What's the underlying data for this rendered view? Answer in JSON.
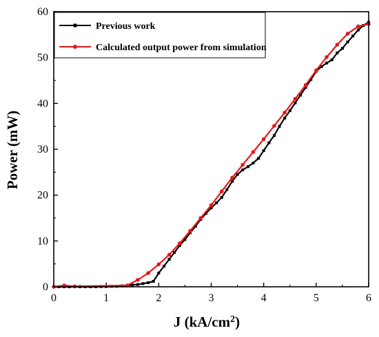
{
  "chart_data": {
    "type": "line",
    "xlabel": "J (kA/cm",
    "xlabel_sup": "2",
    "xlabel_suffix": ")",
    "ylabel": "Power (mW)",
    "xlim": [
      0,
      6
    ],
    "ylim": [
      0,
      60
    ],
    "xticks": [
      0,
      1,
      2,
      3,
      4,
      5,
      6
    ],
    "yticks": [
      0,
      10,
      20,
      30,
      40,
      50,
      60
    ],
    "grid": false,
    "legend_position": "top-left",
    "series": [
      {
        "name": "Previous work",
        "color": "#000000",
        "marker": "square",
        "x": [
          0.0,
          0.1,
          0.2,
          0.3,
          0.4,
          0.5,
          0.6,
          0.7,
          0.8,
          0.9,
          1.0,
          1.1,
          1.2,
          1.3,
          1.4,
          1.5,
          1.6,
          1.7,
          1.8,
          1.9,
          2.0,
          2.1,
          2.2,
          2.3,
          2.4,
          2.5,
          2.6,
          2.7,
          2.8,
          2.9,
          3.0,
          3.1,
          3.2,
          3.3,
          3.4,
          3.5,
          3.6,
          3.7,
          3.8,
          3.9,
          4.0,
          4.1,
          4.2,
          4.3,
          4.4,
          4.5,
          4.6,
          4.7,
          4.8,
          4.9,
          5.0,
          5.1,
          5.2,
          5.3,
          5.4,
          5.5,
          5.6,
          5.7,
          5.8,
          5.9,
          6.0
        ],
        "y": [
          0.0,
          0.0,
          0.0,
          0.0,
          0.0,
          0.0,
          0.0,
          0.0,
          0.0,
          0.05,
          0.05,
          0.1,
          0.1,
          0.2,
          0.3,
          0.4,
          0.5,
          0.7,
          0.9,
          1.2,
          3.0,
          4.5,
          6.0,
          7.5,
          9.0,
          10.3,
          11.8,
          13.2,
          14.7,
          16.0,
          17.2,
          18.3,
          19.5,
          21.2,
          23.0,
          24.5,
          25.5,
          26.2,
          27.0,
          28.0,
          29.7,
          31.4,
          33.0,
          35.0,
          36.8,
          38.4,
          40.1,
          41.8,
          43.5,
          45.2,
          47.0,
          48.0,
          48.8,
          49.5,
          51.0,
          52.0,
          53.4,
          54.7,
          56.0,
          57.0,
          57.7
        ]
      },
      {
        "name": "Calculated output power from simulation",
        "color": "#e8151a",
        "marker": "circle",
        "x": [
          0.0,
          0.2,
          0.4,
          1.4,
          1.6,
          1.8,
          2.0,
          2.2,
          2.4,
          2.6,
          2.8,
          3.0,
          3.2,
          3.4,
          3.6,
          3.8,
          4.0,
          4.2,
          4.4,
          4.6,
          4.8,
          5.0,
          5.2,
          5.4,
          5.6,
          5.8,
          6.0
        ],
        "y": [
          0.0,
          0.3,
          0.1,
          0.3,
          1.5,
          3.0,
          4.9,
          7.0,
          9.5,
          12.2,
          15.0,
          17.8,
          20.8,
          23.8,
          26.6,
          29.4,
          32.2,
          35.1,
          38.0,
          41.0,
          44.0,
          47.2,
          50.1,
          52.8,
          55.2,
          56.8,
          57.3
        ]
      }
    ]
  }
}
